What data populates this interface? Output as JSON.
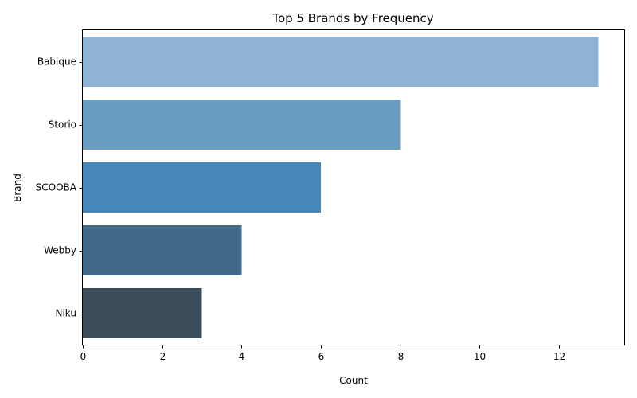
{
  "chart_data": {
    "type": "bar",
    "orientation": "horizontal",
    "title": "Top 5 Brands by Frequency",
    "xlabel": "Count",
    "ylabel": "Brand",
    "categories": [
      "Babique",
      "Storio",
      "SCOOBA",
      "Webby",
      "Niku"
    ],
    "values": [
      13,
      8,
      6,
      4,
      3
    ],
    "colors": [
      "#8fb4d3",
      "#6a9ec1",
      "#4687b8",
      "#41698a",
      "#3a4c5a"
    ],
    "xlim": [
      0,
      13.65
    ],
    "xticks": [
      0,
      2,
      4,
      6,
      8,
      10,
      12
    ],
    "grid": false,
    "legend": "none"
  }
}
